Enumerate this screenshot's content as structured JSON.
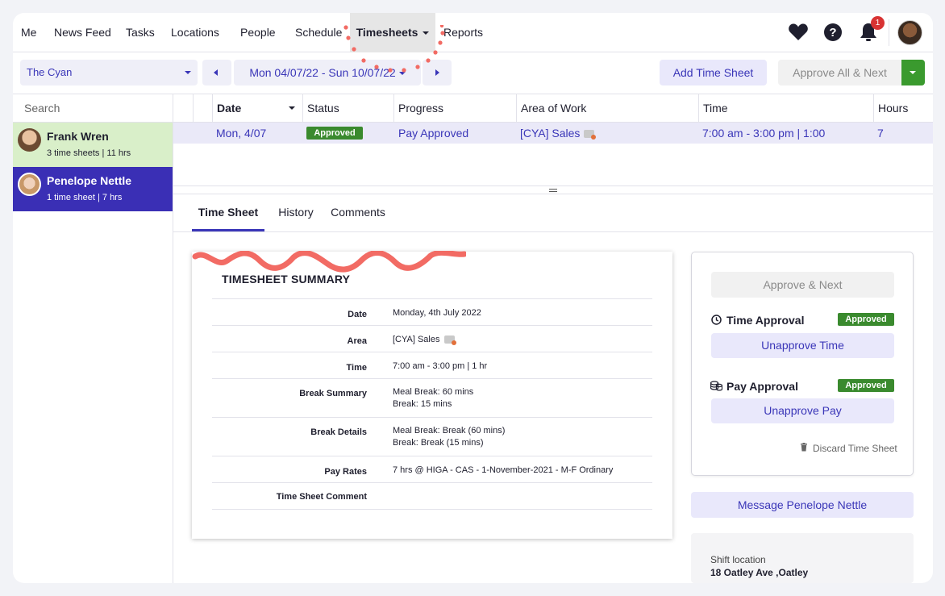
{
  "nav": {
    "items": [
      "Me",
      "News Feed",
      "Tasks",
      "Locations",
      "People",
      "Schedule",
      "Timesheets",
      "Reports"
    ],
    "active": "Timesheets",
    "notification_count": "1"
  },
  "toolbar": {
    "location_select": "The Cyan",
    "date_range": "Mon 04/07/22 - Sun 10/07/22",
    "add_timesheet": "Add Time Sheet",
    "approve_all_next": "Approve All & Next"
  },
  "sidebar": {
    "search_placeholder": "Search",
    "people": [
      {
        "name": "Frank Wren",
        "meta": "3 time sheets | 11 hrs",
        "color": "#d9efc9"
      },
      {
        "name": "Penelope Nettle",
        "meta": "1 time sheet | 7 hrs",
        "color": "#3a2fb5"
      }
    ]
  },
  "grid": {
    "headers": [
      "Date",
      "Status",
      "Progress",
      "Area of Work",
      "Time",
      "Hours"
    ],
    "row": {
      "date": "Mon, 4/07",
      "status": "Approved",
      "progress": "Pay Approved",
      "area": "[CYA] Sales",
      "time": "7:00 am - 3:00 pm | 1:00",
      "hours": "7"
    }
  },
  "tabs": [
    "Time Sheet",
    "History",
    "Comments"
  ],
  "summary": {
    "title": "TIMESHEET SUMMARY",
    "rows": [
      {
        "label": "Date",
        "value": "Monday, 4th July 2022"
      },
      {
        "label": "Area",
        "value": "[CYA] Sales"
      },
      {
        "label": "Time",
        "value": "7:00 am - 3:00 pm | 1 hr"
      },
      {
        "label": "Break Summary",
        "value1": "Meal Break: 60 mins",
        "value2": "Break: 15 mins"
      },
      {
        "label": "Break Details",
        "value1": "Meal Break: Break (60 mins)",
        "value2": "Break: Break (15 mins)"
      },
      {
        "label": "Pay Rates",
        "value": "7 hrs @ HIGA - CAS - 1-November-2021 - M-F Ordinary"
      },
      {
        "label": "Time Sheet Comment",
        "value": ""
      }
    ]
  },
  "approval": {
    "approve_next": "Approve & Next",
    "time_label": "Time Approval",
    "time_status": "Approved",
    "unapprove_time": "Unapprove Time",
    "pay_label": "Pay Approval",
    "pay_status": "Approved",
    "unapprove_pay": "Unapprove Pay",
    "discard": "Discard Time Sheet"
  },
  "message_button": "Message Penelope Nettle",
  "shift": {
    "label": "Shift location",
    "value": "18 Oatley Ave ,Oatley"
  },
  "colors": {
    "accent": "#3a36b8",
    "approved_green": "#3a8a2e",
    "annotation_red": "#f26b64"
  }
}
